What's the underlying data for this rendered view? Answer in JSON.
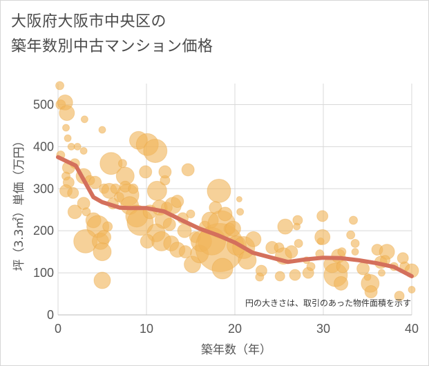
{
  "title_lines": [
    "大阪府大阪市中央区の",
    "築年数別中古マンション価格"
  ],
  "chart_data": {
    "type": "scatter",
    "title": "大阪府大阪市中央区の築年数別中古マンション価格",
    "xlabel": "築年数（年）",
    "ylabel": "坪（3.3㎡）単価（万円）",
    "xlim": [
      0,
      40
    ],
    "ylim": [
      0,
      550
    ],
    "x_ticks": [
      0,
      10,
      20,
      30,
      40
    ],
    "y_ticks": [
      0,
      100,
      200,
      300,
      400,
      500
    ],
    "grid": true,
    "annotation": "円の大きさは、取引のあった物件面積を示す",
    "colors": {
      "bubble": "#f0b45a",
      "bubble_edge": "#e8a33d",
      "trend": "#d4705c",
      "grid": "#d8d8d8"
    },
    "series": [
      {
        "kind": "bubbles",
        "points": [
          {
            "x": 0.2,
            "y": 545,
            "s": 6
          },
          {
            "x": 0.3,
            "y": 500,
            "s": 7
          },
          {
            "x": 0.8,
            "y": 505,
            "s": 11
          },
          {
            "x": 1,
            "y": 480,
            "s": 11
          },
          {
            "x": 0.9,
            "y": 445,
            "s": 5
          },
          {
            "x": 1.1,
            "y": 420,
            "s": 5
          },
          {
            "x": 0.3,
            "y": 380,
            "s": 6
          },
          {
            "x": 1.5,
            "y": 400,
            "s": 5
          },
          {
            "x": 2.2,
            "y": 400,
            "s": 5
          },
          {
            "x": 2.9,
            "y": 390,
            "s": 5
          },
          {
            "x": 3,
            "y": 465,
            "s": 5
          },
          {
            "x": 5,
            "y": 440,
            "s": 5
          },
          {
            "x": 1.2,
            "y": 350,
            "s": 9
          },
          {
            "x": 1.9,
            "y": 360,
            "s": 7
          },
          {
            "x": 0.9,
            "y": 330,
            "s": 6
          },
          {
            "x": 1.2,
            "y": 315,
            "s": 8
          },
          {
            "x": 0.9,
            "y": 295,
            "s": 9
          },
          {
            "x": 1.7,
            "y": 290,
            "s": 8
          },
          {
            "x": 2.9,
            "y": 330,
            "s": 11
          },
          {
            "x": 3.6,
            "y": 320,
            "s": 7
          },
          {
            "x": 4.2,
            "y": 315,
            "s": 9
          },
          {
            "x": 5.2,
            "y": 300,
            "s": 7
          },
          {
            "x": 2.9,
            "y": 265,
            "s": 9
          },
          {
            "x": 1.9,
            "y": 245,
            "s": 10
          },
          {
            "x": 3.2,
            "y": 245,
            "s": 6
          },
          {
            "x": 4,
            "y": 225,
            "s": 11
          },
          {
            "x": 4.5,
            "y": 210,
            "s": 16
          },
          {
            "x": 3.1,
            "y": 175,
            "s": 17
          },
          {
            "x": 4.8,
            "y": 175,
            "s": 12
          },
          {
            "x": 5.2,
            "y": 185,
            "s": 10
          },
          {
            "x": 5.6,
            "y": 210,
            "s": 7
          },
          {
            "x": 5,
            "y": 150,
            "s": 13
          },
          {
            "x": 5,
            "y": 82,
            "s": 12
          },
          {
            "x": 6,
            "y": 360,
            "s": 16
          },
          {
            "x": 5.8,
            "y": 295,
            "s": 11
          },
          {
            "x": 6.2,
            "y": 265,
            "s": 8
          },
          {
            "x": 6.5,
            "y": 300,
            "s": 7
          },
          {
            "x": 7.3,
            "y": 360,
            "s": 6
          },
          {
            "x": 6.9,
            "y": 280,
            "s": 7
          },
          {
            "x": 7.6,
            "y": 330,
            "s": 13
          },
          {
            "x": 7.9,
            "y": 285,
            "s": 16
          },
          {
            "x": 7.6,
            "y": 305,
            "s": 8
          },
          {
            "x": 8.5,
            "y": 300,
            "s": 7
          },
          {
            "x": 9.1,
            "y": 415,
            "s": 13
          },
          {
            "x": 10.1,
            "y": 405,
            "s": 16
          },
          {
            "x": 11,
            "y": 390,
            "s": 17
          },
          {
            "x": 9.9,
            "y": 340,
            "s": 9
          },
          {
            "x": 8.1,
            "y": 260,
            "s": 13
          },
          {
            "x": 8.9,
            "y": 235,
            "s": 16
          },
          {
            "x": 9.3,
            "y": 220,
            "s": 19
          },
          {
            "x": 10.4,
            "y": 245,
            "s": 10
          },
          {
            "x": 11.2,
            "y": 295,
            "s": 14
          },
          {
            "x": 12.1,
            "y": 320,
            "s": 7
          },
          {
            "x": 12.1,
            "y": 340,
            "s": 9
          },
          {
            "x": 11.5,
            "y": 255,
            "s": 11
          },
          {
            "x": 12.3,
            "y": 255,
            "s": 8
          },
          {
            "x": 13,
            "y": 260,
            "s": 12
          },
          {
            "x": 13.5,
            "y": 270,
            "s": 9
          },
          {
            "x": 11.9,
            "y": 225,
            "s": 12
          },
          {
            "x": 12.6,
            "y": 215,
            "s": 9
          },
          {
            "x": 11.1,
            "y": 195,
            "s": 13
          },
          {
            "x": 10.1,
            "y": 175,
            "s": 10
          },
          {
            "x": 11.7,
            "y": 175,
            "s": 14
          },
          {
            "x": 12.8,
            "y": 170,
            "s": 11
          },
          {
            "x": 13.5,
            "y": 155,
            "s": 11
          },
          {
            "x": 14.4,
            "y": 150,
            "s": 9
          },
          {
            "x": 14.3,
            "y": 200,
            "s": 10
          },
          {
            "x": 14.1,
            "y": 230,
            "s": 8
          },
          {
            "x": 14.7,
            "y": 345,
            "s": 9
          },
          {
            "x": 15,
            "y": 240,
            "s": 6
          },
          {
            "x": 15.5,
            "y": 185,
            "s": 8
          },
          {
            "x": 15.2,
            "y": 120,
            "s": 12
          },
          {
            "x": 16,
            "y": 145,
            "s": 13
          },
          {
            "x": 16.2,
            "y": 175,
            "s": 15
          },
          {
            "x": 16.6,
            "y": 210,
            "s": 8
          },
          {
            "x": 17.2,
            "y": 225,
            "s": 12
          },
          {
            "x": 17.8,
            "y": 255,
            "s": 9
          },
          {
            "x": 17.4,
            "y": 175,
            "s": 20
          },
          {
            "x": 18.3,
            "y": 160,
            "s": 35
          },
          {
            "x": 18.5,
            "y": 215,
            "s": 20
          },
          {
            "x": 18.2,
            "y": 295,
            "s": 17
          },
          {
            "x": 18.9,
            "y": 240,
            "s": 10
          },
          {
            "x": 19.4,
            "y": 205,
            "s": 8
          },
          {
            "x": 19.8,
            "y": 205,
            "s": 11
          },
          {
            "x": 18.6,
            "y": 110,
            "s": 15
          },
          {
            "x": 20.5,
            "y": 275,
            "s": 4
          },
          {
            "x": 20.6,
            "y": 245,
            "s": 5
          },
          {
            "x": 20.2,
            "y": 165,
            "s": 14
          },
          {
            "x": 21,
            "y": 160,
            "s": 16
          },
          {
            "x": 21.4,
            "y": 130,
            "s": 13
          },
          {
            "x": 22.1,
            "y": 180,
            "s": 11
          },
          {
            "x": 23,
            "y": 105,
            "s": 8
          },
          {
            "x": 24.2,
            "y": 160,
            "s": 9
          },
          {
            "x": 22.8,
            "y": 90,
            "s": 6
          },
          {
            "x": 25,
            "y": 160,
            "s": 7
          },
          {
            "x": 25.5,
            "y": 140,
            "s": 12
          },
          {
            "x": 25.7,
            "y": 210,
            "s": 11
          },
          {
            "x": 26.4,
            "y": 150,
            "s": 9
          },
          {
            "x": 26.8,
            "y": 95,
            "s": 8
          },
          {
            "x": 25.1,
            "y": 92,
            "s": 7
          },
          {
            "x": 27.1,
            "y": 225,
            "s": 7
          },
          {
            "x": 27,
            "y": 210,
            "s": 5
          },
          {
            "x": 27.2,
            "y": 170,
            "s": 6
          },
          {
            "x": 28.1,
            "y": 130,
            "s": 5
          },
          {
            "x": 28.3,
            "y": 100,
            "s": 8
          },
          {
            "x": 29.7,
            "y": 175,
            "s": 5
          },
          {
            "x": 29.9,
            "y": 185,
            "s": 11
          },
          {
            "x": 29.9,
            "y": 235,
            "s": 8
          },
          {
            "x": 29.6,
            "y": 145,
            "s": 6
          },
          {
            "x": 31,
            "y": 120,
            "s": 12
          },
          {
            "x": 31.7,
            "y": 140,
            "s": 10
          },
          {
            "x": 31.4,
            "y": 95,
            "s": 17
          },
          {
            "x": 32,
            "y": 75,
            "s": 10
          },
          {
            "x": 32.2,
            "y": 115,
            "s": 9
          },
          {
            "x": 32.1,
            "y": 150,
            "s": 6
          },
          {
            "x": 33.1,
            "y": 190,
            "s": 6
          },
          {
            "x": 33.4,
            "y": 225,
            "s": 6
          },
          {
            "x": 33.6,
            "y": 170,
            "s": 6
          },
          {
            "x": 33.6,
            "y": 150,
            "s": 5
          },
          {
            "x": 34.5,
            "y": 110,
            "s": 9
          },
          {
            "x": 35,
            "y": 90,
            "s": 5
          },
          {
            "x": 35.3,
            "y": 75,
            "s": 13
          },
          {
            "x": 35.4,
            "y": 55,
            "s": 9
          },
          {
            "x": 36.1,
            "y": 155,
            "s": 8
          },
          {
            "x": 36.5,
            "y": 125,
            "s": 9
          },
          {
            "x": 37.2,
            "y": 150,
            "s": 11
          },
          {
            "x": 37,
            "y": 130,
            "s": 7
          },
          {
            "x": 38,
            "y": 115,
            "s": 6
          },
          {
            "x": 38.6,
            "y": 45,
            "s": 7
          },
          {
            "x": 39.2,
            "y": 115,
            "s": 7
          },
          {
            "x": 40,
            "y": 60,
            "s": 5
          },
          {
            "x": 40,
            "y": 105,
            "s": 10
          },
          {
            "x": 39,
            "y": 135,
            "s": 8
          },
          {
            "x": 36.6,
            "y": 100,
            "s": 5
          },
          {
            "x": 28.6,
            "y": 115,
            "s": 6
          }
        ]
      },
      {
        "kind": "line",
        "points": [
          {
            "x": 0,
            "y": 375
          },
          {
            "x": 2,
            "y": 355
          },
          {
            "x": 4,
            "y": 280
          },
          {
            "x": 5,
            "y": 268
          },
          {
            "x": 7,
            "y": 255
          },
          {
            "x": 8,
            "y": 254
          },
          {
            "x": 10,
            "y": 254
          },
          {
            "x": 12,
            "y": 246
          },
          {
            "x": 14,
            "y": 225
          },
          {
            "x": 16,
            "y": 205
          },
          {
            "x": 18,
            "y": 190
          },
          {
            "x": 20,
            "y": 172
          },
          {
            "x": 22,
            "y": 148
          },
          {
            "x": 24,
            "y": 137
          },
          {
            "x": 26,
            "y": 126
          },
          {
            "x": 28,
            "y": 132
          },
          {
            "x": 30,
            "y": 136
          },
          {
            "x": 32,
            "y": 135
          },
          {
            "x": 34,
            "y": 130
          },
          {
            "x": 36,
            "y": 123
          },
          {
            "x": 38,
            "y": 114
          },
          {
            "x": 40,
            "y": 92
          }
        ]
      }
    ]
  }
}
